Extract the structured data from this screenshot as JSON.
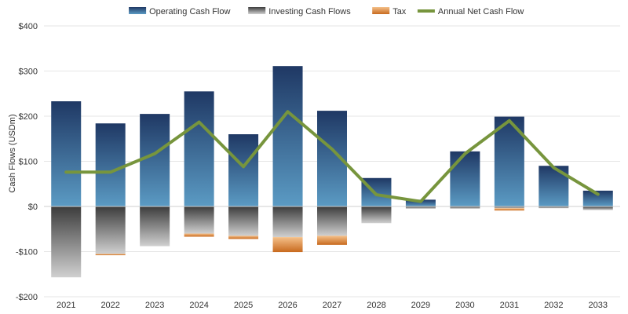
{
  "chart_data": {
    "type": "bar",
    "ylabel": "Cash Flows (USDm)",
    "ylim": [
      -200,
      400
    ],
    "yticks": [
      {
        "value": 400,
        "label": "$400"
      },
      {
        "value": 300,
        "label": "$300"
      },
      {
        "value": 200,
        "label": "$200"
      },
      {
        "value": 100,
        "label": "$100"
      },
      {
        "value": 0,
        "label": "$0"
      },
      {
        "value": -100,
        "label": "-$100"
      },
      {
        "value": -200,
        "label": "-$200"
      }
    ],
    "negative_tick_color": "#c00000",
    "legend_position": "top",
    "stacked": true,
    "categories": [
      "2021",
      "2022",
      "2023",
      "2024",
      "2025",
      "2026",
      "2027",
      "2028",
      "2029",
      "2030",
      "2031",
      "2032",
      "2033"
    ],
    "series": [
      {
        "name": "Operating Cash Flow",
        "kind": "bar",
        "colors": [
          "#1f3864",
          "#5b9bc4"
        ],
        "values": [
          233,
          184,
          205,
          255,
          160,
          311,
          212,
          63,
          15,
          122,
          199,
          90,
          35
        ]
      },
      {
        "name": "Investing Cash Flows",
        "kind": "bar",
        "colors": [
          "#3c3c3c",
          "#d0d0d0"
        ],
        "values": [
          -157,
          -105,
          -88,
          -60,
          -65,
          -68,
          -65,
          -37,
          -5,
          -5,
          -4,
          -4,
          -8
        ]
      },
      {
        "name": "Tax",
        "kind": "bar",
        "colors": [
          "#f4c08a",
          "#c86a1e"
        ],
        "values": [
          0,
          -3,
          0,
          -7,
          -7,
          -33,
          -20,
          0,
          0,
          0,
          -5,
          0,
          0
        ]
      },
      {
        "name": "Annual Net Cash Flow",
        "kind": "line",
        "colors": [
          "#77953d"
        ],
        "values": [
          76,
          76,
          117,
          187,
          88,
          210,
          127,
          26,
          11,
          117,
          190,
          86,
          27
        ]
      }
    ]
  }
}
